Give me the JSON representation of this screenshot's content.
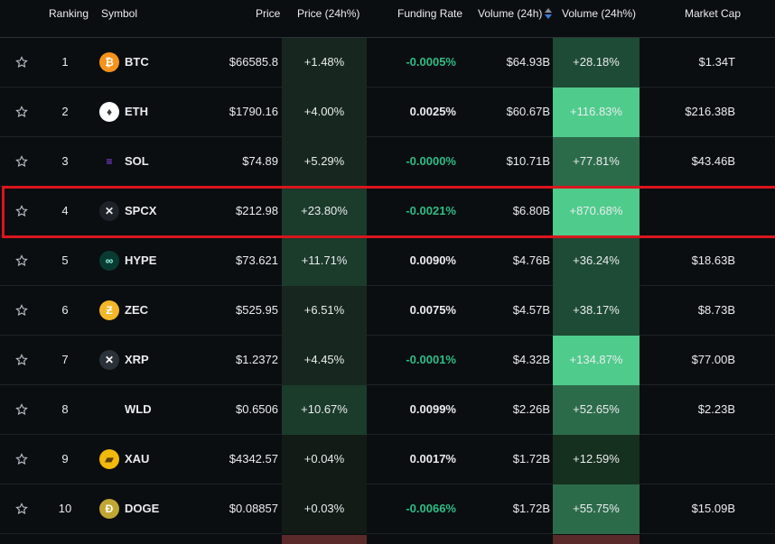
{
  "header": {
    "ranking": "Ranking",
    "symbol": "Symbol",
    "price": "Price",
    "price_change": "Price (24h%)",
    "funding_rate": "Funding Rate",
    "volume": "Volume (24h)",
    "volume_change": "Volume (24h%)",
    "market_cap": "Market Cap"
  },
  "colors": {
    "background": "#0b0e11",
    "funding_positive": "#eaecef",
    "funding_negative": "#2ebd85",
    "highlight_border": "#d9161d"
  },
  "rows": [
    {
      "rank": "1",
      "symbol": "BTC",
      "icon": "bitcoin-icon",
      "price": "$66585.8",
      "price_change": "+1.48%",
      "funding_rate": "-0.0005%",
      "volume": "$64.93B",
      "volume_change": "+28.18%",
      "market_cap": "$1.34T"
    },
    {
      "rank": "2",
      "symbol": "ETH",
      "icon": "ethereum-icon",
      "price": "$1790.16",
      "price_change": "+4.00%",
      "funding_rate": "0.0025%",
      "volume": "$60.67B",
      "volume_change": "+116.83%",
      "market_cap": "$216.38B"
    },
    {
      "rank": "3",
      "symbol": "SOL",
      "icon": "solana-icon",
      "price": "$74.89",
      "price_change": "+5.29%",
      "funding_rate": "-0.0000%",
      "volume": "$10.71B",
      "volume_change": "+77.81%",
      "market_cap": "$43.46B"
    },
    {
      "rank": "4",
      "symbol": "SPCX",
      "icon": "spacex-icon",
      "price": "$212.98",
      "price_change": "+23.80%",
      "funding_rate": "-0.0021%",
      "volume": "$6.80B",
      "volume_change": "+870.68%",
      "market_cap": ""
    },
    {
      "rank": "5",
      "symbol": "HYPE",
      "icon": "hyperliquid-icon",
      "price": "$73.621",
      "price_change": "+11.71%",
      "funding_rate": "0.0090%",
      "volume": "$4.76B",
      "volume_change": "+36.24%",
      "market_cap": "$18.63B"
    },
    {
      "rank": "6",
      "symbol": "ZEC",
      "icon": "zcash-icon",
      "price": "$525.95",
      "price_change": "+6.51%",
      "funding_rate": "0.0075%",
      "volume": "$4.57B",
      "volume_change": "+38.17%",
      "market_cap": "$8.73B"
    },
    {
      "rank": "7",
      "symbol": "XRP",
      "icon": "xrp-icon",
      "price": "$1.2372",
      "price_change": "+4.45%",
      "funding_rate": "-0.0001%",
      "volume": "$4.32B",
      "volume_change": "+134.87%",
      "market_cap": "$77.00B"
    },
    {
      "rank": "8",
      "symbol": "WLD",
      "icon": "worldcoin-icon",
      "price": "$0.6506",
      "price_change": "+10.67%",
      "funding_rate": "0.0099%",
      "volume": "$2.26B",
      "volume_change": "+52.65%",
      "market_cap": "$2.23B"
    },
    {
      "rank": "9",
      "symbol": "XAU",
      "icon": "gold-icon",
      "price": "$4342.57",
      "price_change": "+0.04%",
      "funding_rate": "0.0017%",
      "volume": "$1.72B",
      "volume_change": "+12.59%",
      "market_cap": ""
    },
    {
      "rank": "10",
      "symbol": "DOGE",
      "icon": "dogecoin-icon",
      "price": "$0.08857",
      "price_change": "+0.03%",
      "funding_rate": "-0.0066%",
      "volume": "$1.72B",
      "volume_change": "+55.75%",
      "market_cap": "$15.09B"
    }
  ]
}
